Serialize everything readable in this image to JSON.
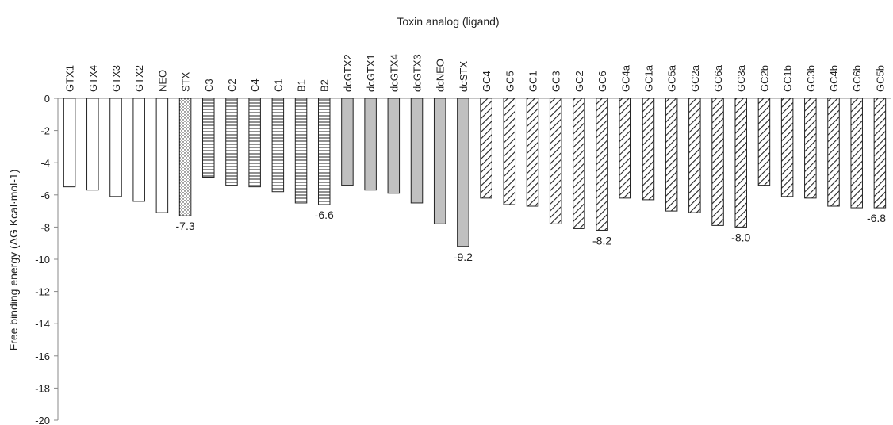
{
  "chart_data": {
    "type": "bar",
    "title": "",
    "xlabel": "Toxin analog (ligand)",
    "ylabel": "Free binding energy (ΔG Kcal·mol-1)",
    "ylim": [
      -20,
      0
    ],
    "yticks": [
      0,
      -2,
      -4,
      -6,
      -8,
      -10,
      -12,
      -14,
      -16,
      -18,
      -20
    ],
    "grid": false,
    "legend": "none",
    "categories": [
      "GTX1",
      "GTX4",
      "GTX3",
      "GTX2",
      "NEO",
      "STX",
      "C3",
      "C2",
      "C4",
      "C1",
      "B1",
      "B2",
      "dcGTX2",
      "dcGTX1",
      "dcGTX4",
      "dcGTX3",
      "dcNEO",
      "dcSTX",
      "GC4",
      "GC5",
      "GC1",
      "GC3",
      "GC2",
      "GC6",
      "GC4a",
      "GC1a",
      "GC5a",
      "GC2a",
      "GC6a",
      "GC3a",
      "GC2b",
      "GC1b",
      "GC3b",
      "GC4b",
      "GC6b",
      "GC5b"
    ],
    "values": [
      -5.5,
      -5.7,
      -6.1,
      -6.4,
      -7.1,
      -7.3,
      -4.9,
      -5.4,
      -5.5,
      -5.8,
      -6.5,
      -6.6,
      -5.4,
      -5.7,
      -5.9,
      -6.5,
      -7.8,
      -9.2,
      -6.2,
      -6.6,
      -6.7,
      -7.8,
      -8.1,
      -8.2,
      -6.2,
      -6.3,
      -7.0,
      -7.1,
      -7.9,
      -8.0,
      -5.4,
      -6.1,
      -6.2,
      -6.7,
      -6.8,
      -6.8
    ],
    "fills": [
      "white",
      "white",
      "white",
      "white",
      "white",
      "dots",
      "hlines",
      "hlines",
      "hlines",
      "hlines",
      "hlines",
      "hlines",
      "gray",
      "gray",
      "gray",
      "gray",
      "gray",
      "gray",
      "diag",
      "diag",
      "diag",
      "diag",
      "diag",
      "diag",
      "diag",
      "diag",
      "diag",
      "diag",
      "diag",
      "diag",
      "diag",
      "diag",
      "diag",
      "diag",
      "diag",
      "diag"
    ],
    "annotations": [
      {
        "index": 5,
        "label": "-7.3"
      },
      {
        "index": 11,
        "label": "-6.6"
      },
      {
        "index": 17,
        "label": "-9.2"
      },
      {
        "index": 23,
        "label": "-8.2"
      },
      {
        "index": 29,
        "label": "-8.0"
      },
      {
        "index": 35,
        "label": "-6.8"
      }
    ],
    "colors": {
      "stroke": "#222222",
      "gray_fill": "#c0c0c0",
      "axis": "#888888"
    }
  }
}
